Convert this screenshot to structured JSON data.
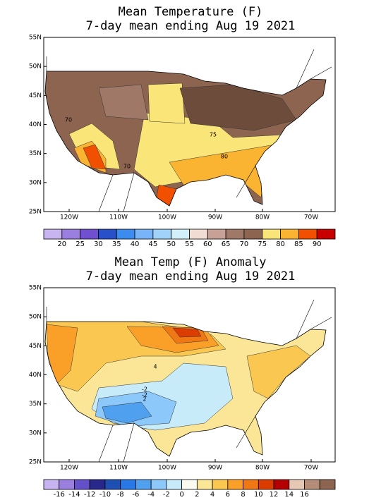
{
  "panels": [
    {
      "title": "Mean Temperature (F)",
      "subtitle": "7-day mean ending Aug 19 2021",
      "lat_labels": [
        "55N",
        "50N",
        "45N",
        "40N",
        "35N",
        "30N",
        "25N"
      ],
      "lon_labels": [
        "120W",
        "110W",
        "100W",
        "90W",
        "80W",
        "70W"
      ],
      "contour_labels": [
        "70",
        "75",
        "80",
        "70"
      ],
      "colorbar": {
        "labels": [
          20,
          25,
          30,
          35,
          40,
          45,
          50,
          55,
          60,
          65,
          70,
          75,
          80,
          85,
          90
        ],
        "colors": [
          "#c8b4f0",
          "#9b7fe0",
          "#7050d0",
          "#2850c8",
          "#3c8cf0",
          "#78b4f8",
          "#a0d2fa",
          "#d2f0fa",
          "#f0dcd2",
          "#c8a096",
          "#a07868",
          "#8c6450",
          "#fae678",
          "#fab432",
          "#f05000",
          "#c80000"
        ]
      }
    },
    {
      "title": "Mean Temp (F) Anomaly",
      "subtitle": "7-day mean ending Aug 19 2021",
      "lat_labels": [
        "55N",
        "50N",
        "45N",
        "40N",
        "35N",
        "30N",
        "25N"
      ],
      "lon_labels": [
        "120W",
        "110W",
        "100W",
        "90W",
        "80W",
        "70W"
      ],
      "contour_labels": [
        "4",
        "-2",
        "-2",
        "2"
      ],
      "colorbar": {
        "labels": [
          -16,
          -14,
          -12,
          -10,
          -8,
          -6,
          -4,
          -2,
          0,
          2,
          4,
          6,
          8,
          10,
          12,
          14,
          16
        ],
        "colors": [
          "#c8b4f0",
          "#9b7fe0",
          "#6450c8",
          "#28288c",
          "#1e50b4",
          "#2878e6",
          "#50a0f0",
          "#8cc8fa",
          "#c8ebfa",
          "#fafaf0",
          "#fae696",
          "#fac850",
          "#faa028",
          "#f07814",
          "#dc3c00",
          "#b40000",
          "#e6c8b4",
          "#b48c78",
          "#8c6450"
        ]
      }
    }
  ]
}
